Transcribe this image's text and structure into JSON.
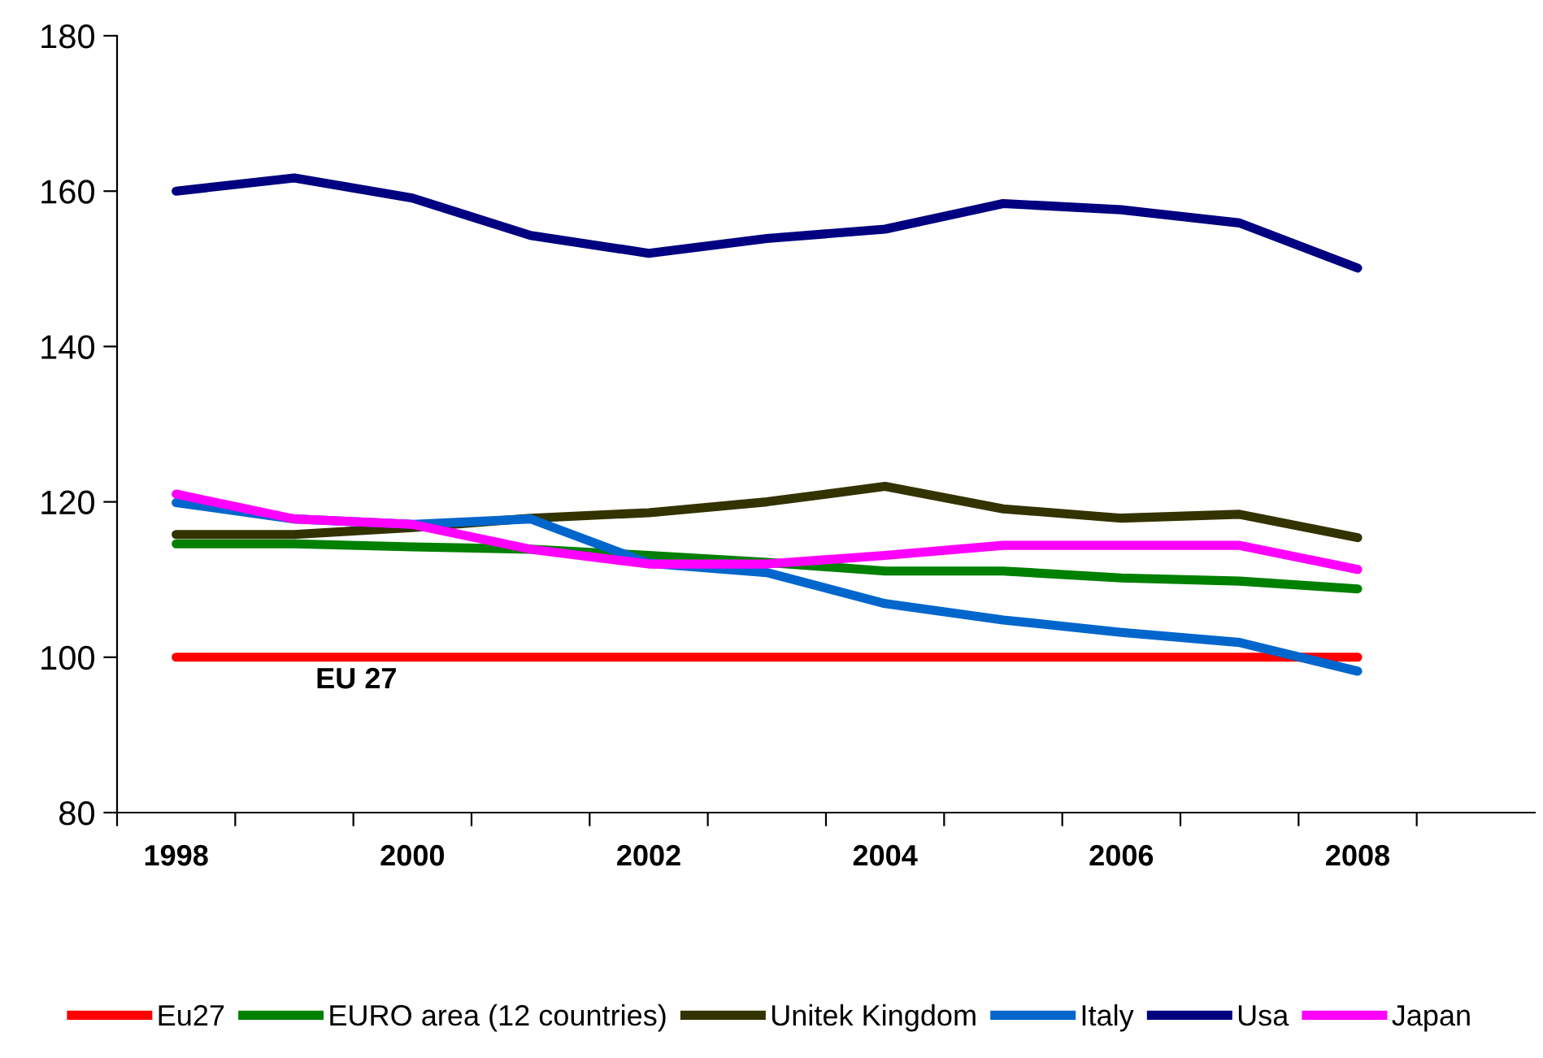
{
  "chart_data": {
    "type": "line",
    "categories": [
      "1998",
      null,
      "2000",
      null,
      "2002",
      null,
      "2004",
      null,
      "2006",
      null,
      "2008",
      null
    ],
    "series": [
      {
        "name": "Eu27",
        "color": "#ff0000",
        "values": [
          100,
          100,
          100,
          100,
          100,
          100,
          100,
          100,
          100,
          100,
          100,
          null
        ]
      },
      {
        "name": "EURO area (12 countries)",
        "color": "#008000",
        "values": [
          114.6,
          114.6,
          114.2,
          113.9,
          113.1,
          112.2,
          111.1,
          111.1,
          110.2,
          109.8,
          108.8,
          null
        ]
      },
      {
        "name": "Unitek Kingdom",
        "color": "#333300",
        "values": [
          115.8,
          115.8,
          116.7,
          117.9,
          118.6,
          120,
          122,
          119.1,
          117.9,
          118.4,
          115.4,
          null
        ]
      },
      {
        "name": "Italy",
        "color": "#0066cc",
        "values": [
          119.9,
          117.8,
          117.1,
          117.8,
          112.1,
          110.9,
          106.9,
          104.8,
          103.2,
          101.9,
          98.2,
          null
        ]
      },
      {
        "name": "Usa",
        "color": "#000080",
        "values": [
          160,
          161.7,
          159.1,
          154.3,
          152,
          153.9,
          155.1,
          158.4,
          157.6,
          155.9,
          150.1,
          null
        ]
      },
      {
        "name": "Japan",
        "color": "#ff00ff",
        "values": [
          121,
          117.8,
          117.1,
          113.9,
          112,
          112,
          113.1,
          114.4,
          114.4,
          114.4,
          111.3,
          null
        ]
      }
    ],
    "ylim": [
      80,
      180
    ],
    "yticks": [
      80,
      100,
      120,
      140,
      160,
      180
    ],
    "grid": false,
    "legend": "bottom",
    "marker": "none",
    "line_style": "solid",
    "annotations": [
      "EU 27"
    ]
  }
}
